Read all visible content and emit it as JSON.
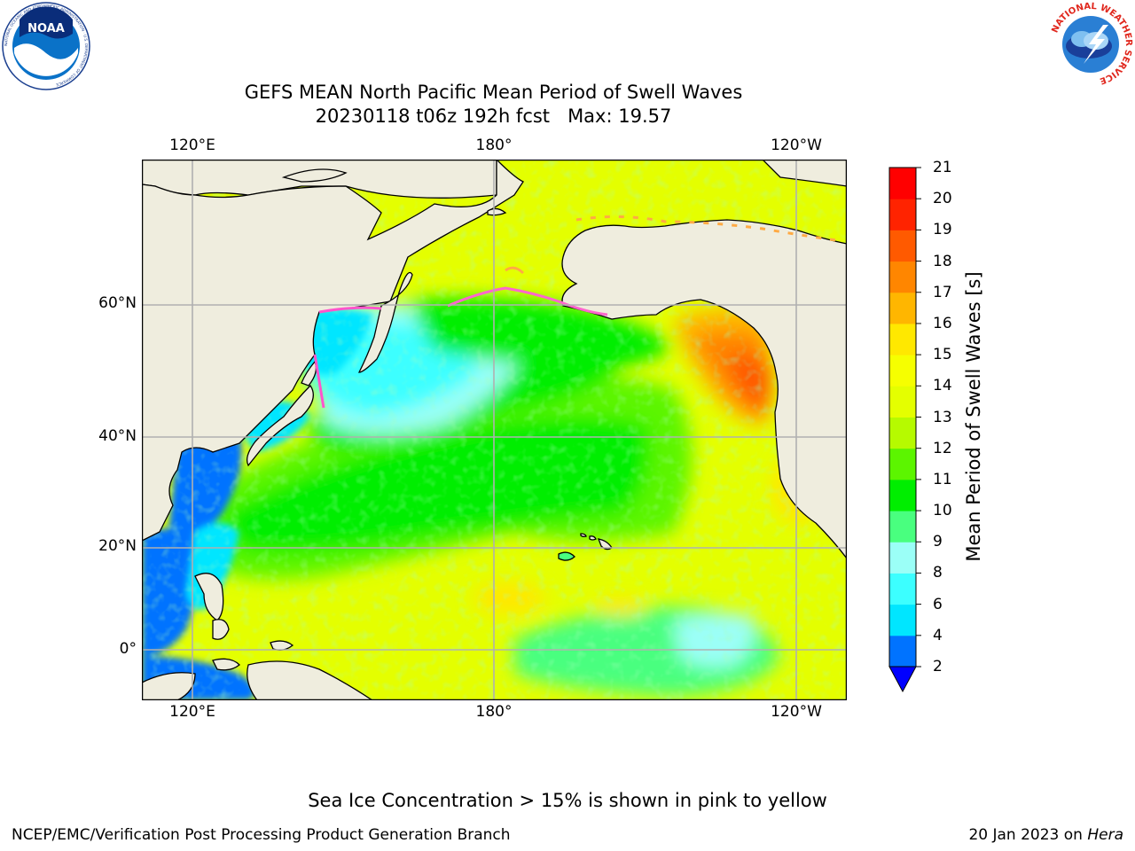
{
  "header": {
    "title_line1": "GEFS MEAN North Pacific Mean Period of Swell Waves",
    "title_line2": "20230118 t06z 192h fcst   Max: 19.57"
  },
  "logos": {
    "left_text": "NOAA",
    "left_ring_text": "NATIONAL OCEANIC AND ATMOSPHERIC ADMINISTRATION · U.S. DEPARTMENT OF COMMERCE",
    "right_ring_text": "NATIONAL WEATHER SERVICE"
  },
  "map": {
    "lon_labels": [
      "120°E",
      "180°",
      "120°W"
    ],
    "lat_labels": [
      "60°N",
      "40°N",
      "20°N",
      "0°"
    ],
    "land_color": "#efedde",
    "ocean_background_color": "#ccff00",
    "grid_color": "#b0b0b0"
  },
  "colorbar": {
    "label": "Mean Period of Swell Waves [s]",
    "ticks": [
      "2",
      "4",
      "6",
      "8",
      "9",
      "10",
      "11",
      "12",
      "13",
      "14",
      "15",
      "16",
      "17",
      "18",
      "19",
      "20",
      "21"
    ],
    "colors": [
      "#0073ff",
      "#00e6ff",
      "#3cffff",
      "#9bfff7",
      "#49ff7f",
      "#00ee00",
      "#5cf500",
      "#b6fa00",
      "#e4ff00",
      "#f6ff00",
      "#ffe800",
      "#ffb600",
      "#ff8600",
      "#ff5a00",
      "#ff2300",
      "#ff0000"
    ],
    "under_color": "#0000ff"
  },
  "note": "Sea Ice Concentration > 15% is shown in pink to yellow",
  "footer": {
    "left": "NCEP/EMC/Verification Post Processing Product Generation Branch",
    "right_date": "20 Jan 2023 on ",
    "right_machine": "Hera"
  }
}
